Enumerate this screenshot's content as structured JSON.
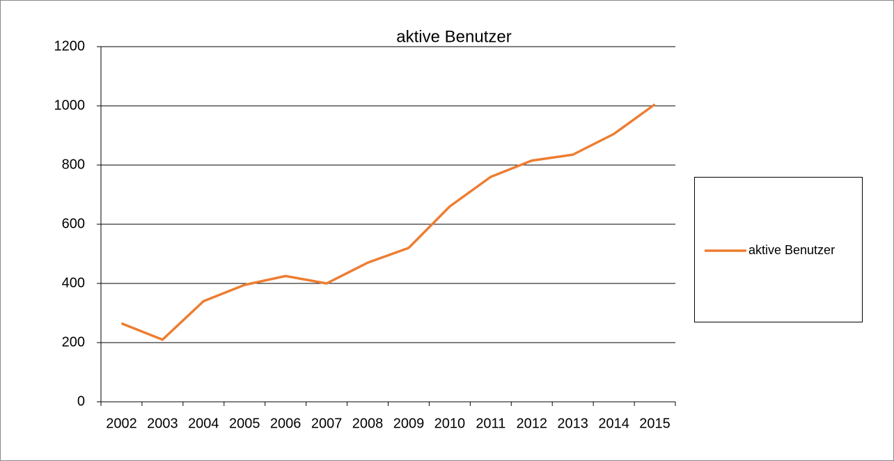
{
  "chart_data": {
    "type": "line",
    "title": "aktive Benutzer",
    "categories": [
      "2002",
      "2003",
      "2004",
      "2005",
      "2006",
      "2007",
      "2008",
      "2009",
      "2010",
      "2011",
      "2012",
      "2013",
      "2014",
      "2015"
    ],
    "series": [
      {
        "name": "aktive Benutzer",
        "color": "#ed7d31",
        "values": [
          265,
          210,
          340,
          395,
          425,
          400,
          470,
          520,
          660,
          760,
          815,
          835,
          905,
          1005
        ]
      }
    ],
    "ylim": [
      0,
      1200
    ],
    "yticks": [
      0,
      200,
      400,
      600,
      800,
      1000,
      1200
    ],
    "grid": true,
    "legend": "right"
  }
}
